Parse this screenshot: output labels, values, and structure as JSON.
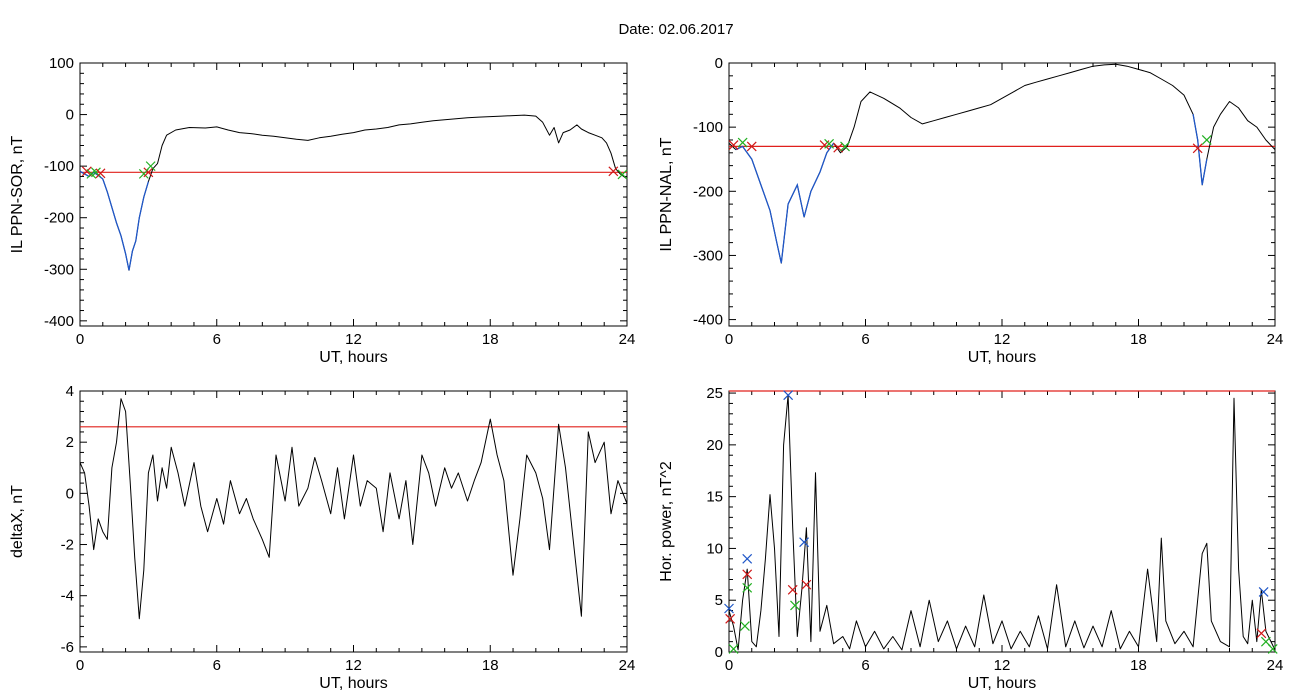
{
  "figure": {
    "title": "Date:  02.06.2017"
  },
  "colors": {
    "axis": "#000000",
    "threshold": "#e0201c",
    "trace": "#000000",
    "highlight": "#1f57c8",
    "marker_red": "#d01818",
    "marker_green": "#22b022",
    "marker_blue": "#1f57c8"
  },
  "chart_data": [
    {
      "id": "il-sor",
      "type": "line",
      "xlabel": "UT, hours",
      "ylabel": "IL PPN-SOR, nT",
      "xlim": [
        0,
        24
      ],
      "ylim": [
        -410,
        100
      ],
      "xticks": [
        0,
        6,
        12,
        18,
        24
      ],
      "yticks": [
        100,
        0,
        -100,
        -200,
        -300,
        -400
      ],
      "threshold": -112,
      "highlight_segments": [
        [
          0,
          1.0
        ],
        [
          1.0,
          3.1
        ]
      ],
      "series": [
        {
          "x": [
            0,
            0.2,
            0.4,
            0.6,
            0.8,
            1.0,
            1.2,
            1.4,
            1.6,
            1.8,
            2.0,
            2.15,
            2.3,
            2.45,
            2.6,
            2.8,
            3.0,
            3.2,
            3.4,
            3.6,
            3.8,
            4.2,
            4.8,
            5.5,
            6.0,
            6.5,
            7.0,
            7.5,
            8.0,
            8.5,
            9.0,
            9.5,
            10.0,
            10.5,
            11.0,
            11.5,
            12.0,
            12.5,
            13.0,
            13.5,
            14.0,
            14.5,
            15.0,
            15.5,
            16.0,
            16.5,
            17.0,
            17.5,
            18.0,
            18.5,
            19.0,
            19.5,
            20.0,
            20.3,
            20.6,
            20.8,
            21.0,
            21.2,
            21.5,
            21.8,
            22.0,
            22.3,
            22.6,
            22.9,
            23.1,
            23.3,
            23.5,
            23.7,
            24.0
          ],
          "y": [
            -110,
            -115,
            -120,
            -112,
            -118,
            -125,
            -150,
            -180,
            -210,
            -235,
            -270,
            -302,
            -265,
            -245,
            -200,
            -160,
            -130,
            -105,
            -95,
            -60,
            -40,
            -30,
            -25,
            -26,
            -24,
            -30,
            -35,
            -37,
            -40,
            -42,
            -45,
            -48,
            -50,
            -45,
            -42,
            -38,
            -35,
            -30,
            -28,
            -25,
            -20,
            -18,
            -15,
            -12,
            -10,
            -8,
            -6,
            -5,
            -4,
            -3,
            -2,
            -1,
            -3,
            -15,
            -40,
            -25,
            -55,
            -35,
            -30,
            -20,
            -28,
            -35,
            -40,
            -45,
            -55,
            -75,
            -105,
            -115,
            -125
          ]
        }
      ],
      "markers": [
        {
          "x": 0.3,
          "y": -110,
          "color": "red"
        },
        {
          "x": 0.5,
          "y": -115,
          "color": "green"
        },
        {
          "x": 0.7,
          "y": -112,
          "color": "green"
        },
        {
          "x": 0.9,
          "y": -114,
          "color": "red"
        },
        {
          "x": 2.8,
          "y": -115,
          "color": "green"
        },
        {
          "x": 3.0,
          "y": -112,
          "color": "red"
        },
        {
          "x": 3.1,
          "y": -100,
          "color": "green"
        },
        {
          "x": 23.4,
          "y": -110,
          "color": "red"
        },
        {
          "x": 23.8,
          "y": -116,
          "color": "green"
        }
      ]
    },
    {
      "id": "il-nal",
      "type": "line",
      "xlabel": "UT, hours",
      "ylabel": "IL PPN-NAL, nT",
      "xlim": [
        0,
        24
      ],
      "ylim": [
        -410,
        0
      ],
      "xticks": [
        0,
        6,
        12,
        18,
        24
      ],
      "yticks": [
        0,
        -100,
        -200,
        -300,
        -400
      ],
      "threshold": -130,
      "highlight_segments": [
        [
          0.2,
          4.6
        ],
        [
          20.4,
          21.0
        ]
      ],
      "series": [
        {
          "x": [
            0,
            0.3,
            0.6,
            1.0,
            1.4,
            1.8,
            2.1,
            2.3,
            2.6,
            3.0,
            3.3,
            3.6,
            4.0,
            4.3,
            4.6,
            4.9,
            5.2,
            5.5,
            5.8,
            6.2,
            6.8,
            7.5,
            8.0,
            8.5,
            9.0,
            9.5,
            10.0,
            10.5,
            11.0,
            11.5,
            12.0,
            12.5,
            13.0,
            13.5,
            14.0,
            14.5,
            15.0,
            15.5,
            16.0,
            16.5,
            17.0,
            17.5,
            18.0,
            18.5,
            19.0,
            19.5,
            20.0,
            20.4,
            20.6,
            20.8,
            21.0,
            21.3,
            21.6,
            22.0,
            22.4,
            22.8,
            23.2,
            23.6,
            24.0
          ],
          "y": [
            -125,
            -135,
            -130,
            -150,
            -190,
            -230,
            -280,
            -312,
            -220,
            -190,
            -240,
            -200,
            -170,
            -140,
            -125,
            -140,
            -130,
            -100,
            -60,
            -45,
            -55,
            -70,
            -85,
            -95,
            -90,
            -85,
            -80,
            -75,
            -70,
            -65,
            -55,
            -45,
            -35,
            -30,
            -25,
            -20,
            -15,
            -10,
            -5,
            -3,
            -2,
            -5,
            -10,
            -15,
            -25,
            -35,
            -50,
            -80,
            -120,
            -190,
            -150,
            -100,
            -80,
            -60,
            -70,
            -90,
            -100,
            -120,
            -135
          ]
        }
      ],
      "markers": [
        {
          "x": 0.2,
          "y": -128,
          "color": "red"
        },
        {
          "x": 0.6,
          "y": -124,
          "color": "green"
        },
        {
          "x": 1.0,
          "y": -130,
          "color": "red"
        },
        {
          "x": 4.2,
          "y": -128,
          "color": "red"
        },
        {
          "x": 4.4,
          "y": -126,
          "color": "green"
        },
        {
          "x": 4.8,
          "y": -132,
          "color": "red"
        },
        {
          "x": 5.1,
          "y": -130,
          "color": "green"
        },
        {
          "x": 20.6,
          "y": -133,
          "color": "red"
        },
        {
          "x": 21.0,
          "y": -120,
          "color": "green"
        }
      ]
    },
    {
      "id": "deltax",
      "type": "line",
      "xlabel": "UT, hours",
      "ylabel": "deltaX, nT",
      "xlim": [
        0,
        24
      ],
      "ylim": [
        -6.2,
        4
      ],
      "xticks": [
        0,
        6,
        12,
        18,
        24
      ],
      "yticks": [
        4,
        2,
        0,
        -2,
        -4,
        -6
      ],
      "threshold": 2.6,
      "highlight_segments": [],
      "series": [
        {
          "x": [
            0,
            0.2,
            0.4,
            0.6,
            0.8,
            1.0,
            1.2,
            1.4,
            1.6,
            1.8,
            2.0,
            2.2,
            2.4,
            2.6,
            2.8,
            3.0,
            3.2,
            3.4,
            3.6,
            3.8,
            4.0,
            4.3,
            4.6,
            5.0,
            5.3,
            5.6,
            6.0,
            6.3,
            6.6,
            7.0,
            7.3,
            7.6,
            8.0,
            8.3,
            8.6,
            9.0,
            9.3,
            9.6,
            10.0,
            10.3,
            10.6,
            11.0,
            11.3,
            11.6,
            12.0,
            12.3,
            12.6,
            13.0,
            13.3,
            13.6,
            14.0,
            14.3,
            14.6,
            15.0,
            15.3,
            15.6,
            16.0,
            16.3,
            16.6,
            17.0,
            17.3,
            17.6,
            18.0,
            18.3,
            18.6,
            19.0,
            19.3,
            19.6,
            20.0,
            20.3,
            20.6,
            21.0,
            21.3,
            21.6,
            22.0,
            22.3,
            22.6,
            23.0,
            23.3,
            23.6,
            24.0
          ],
          "y": [
            1.2,
            0.8,
            -0.5,
            -2.2,
            -1.0,
            -1.5,
            -1.8,
            1.0,
            2.0,
            3.7,
            3.2,
            0.5,
            -2.5,
            -4.9,
            -3.0,
            0.8,
            1.5,
            -0.3,
            1.0,
            0.2,
            1.8,
            0.8,
            -0.5,
            1.2,
            -0.5,
            -1.5,
            -0.2,
            -1.2,
            0.5,
            -0.8,
            -0.2,
            -1.0,
            -1.8,
            -2.5,
            1.5,
            -0.3,
            1.8,
            -0.5,
            0.2,
            1.4,
            0.5,
            -0.8,
            1.0,
            -1.0,
            1.5,
            -0.5,
            0.5,
            0.2,
            -1.5,
            0.8,
            -1.0,
            0.5,
            -2.0,
            1.5,
            0.8,
            -0.5,
            1.0,
            0.2,
            0.8,
            -0.3,
            0.5,
            1.2,
            2.9,
            1.5,
            0.5,
            -3.2,
            -1.0,
            1.5,
            0.8,
            -0.2,
            -2.2,
            2.7,
            1.0,
            -1.5,
            -4.8,
            2.4,
            1.2,
            2.0,
            -0.8,
            0.5,
            -0.4
          ]
        }
      ],
      "markers": []
    },
    {
      "id": "hor-power",
      "type": "line",
      "xlabel": "UT, hours",
      "ylabel": "Hor. power, nT^2",
      "xlim": [
        0,
        24
      ],
      "ylim": [
        0,
        25.2
      ],
      "xticks": [
        0,
        6,
        12,
        18,
        24
      ],
      "yticks": [
        25,
        20,
        15,
        10,
        5,
        0
      ],
      "threshold": 25.2,
      "highlight_segments": [],
      "series": [
        {
          "x": [
            0,
            0.2,
            0.4,
            0.6,
            0.8,
            1.0,
            1.2,
            1.4,
            1.6,
            1.8,
            2.0,
            2.2,
            2.4,
            2.6,
            2.8,
            3.0,
            3.2,
            3.4,
            3.6,
            3.8,
            4.0,
            4.3,
            4.6,
            5.0,
            5.3,
            5.6,
            6.0,
            6.4,
            6.8,
            7.2,
            7.6,
            8.0,
            8.4,
            8.8,
            9.2,
            9.6,
            10.0,
            10.4,
            10.8,
            11.2,
            11.6,
            12.0,
            12.4,
            12.8,
            13.2,
            13.6,
            14.0,
            14.4,
            14.8,
            15.2,
            15.6,
            16.0,
            16.4,
            16.8,
            17.2,
            17.6,
            18.0,
            18.4,
            18.8,
            19.0,
            19.2,
            19.6,
            20.0,
            20.4,
            20.8,
            21.0,
            21.2,
            21.6,
            22.0,
            22.2,
            22.4,
            22.6,
            22.8,
            23.0,
            23.2,
            23.4,
            23.6,
            24.0
          ],
          "y": [
            4.0,
            2.5,
            0.2,
            5.0,
            8.0,
            1.0,
            0.5,
            4.0,
            9.0,
            15.2,
            10.0,
            1.5,
            20.0,
            24.8,
            12.0,
            1.5,
            6.0,
            12.0,
            1.0,
            17.3,
            2.0,
            4.5,
            0.8,
            1.5,
            0.3,
            3.0,
            0.5,
            2.0,
            0.3,
            1.5,
            0.2,
            4.0,
            0.5,
            5.0,
            1.0,
            3.0,
            0.3,
            2.5,
            0.5,
            5.5,
            0.8,
            3.0,
            0.3,
            2.0,
            0.5,
            3.5,
            0.3,
            6.5,
            0.5,
            3.0,
            0.4,
            2.5,
            0.5,
            4.0,
            0.3,
            2.0,
            0.5,
            8.0,
            1.0,
            11.0,
            3.0,
            0.8,
            2.0,
            0.5,
            9.5,
            10.5,
            3.0,
            1.0,
            0.5,
            24.5,
            8.0,
            1.5,
            0.8,
            5.0,
            1.0,
            6.0,
            2.0,
            0.2
          ]
        }
      ],
      "markers": [
        {
          "x": 0,
          "y": 4.2,
          "color": "blue"
        },
        {
          "x": 0.05,
          "y": 3.2,
          "color": "red"
        },
        {
          "x": 0.2,
          "y": 0.3,
          "color": "green"
        },
        {
          "x": 0.7,
          "y": 2.5,
          "color": "green"
        },
        {
          "x": 0.8,
          "y": 9.0,
          "color": "blue"
        },
        {
          "x": 0.8,
          "y": 7.5,
          "color": "red"
        },
        {
          "x": 0.8,
          "y": 6.2,
          "color": "green"
        },
        {
          "x": 2.6,
          "y": 24.8,
          "color": "blue"
        },
        {
          "x": 2.8,
          "y": 6.0,
          "color": "red"
        },
        {
          "x": 2.9,
          "y": 4.5,
          "color": "green"
        },
        {
          "x": 3.3,
          "y": 10.6,
          "color": "blue"
        },
        {
          "x": 3.4,
          "y": 6.5,
          "color": "red"
        },
        {
          "x": 23.5,
          "y": 5.8,
          "color": "blue"
        },
        {
          "x": 23.4,
          "y": 1.8,
          "color": "red"
        },
        {
          "x": 23.6,
          "y": 1.0,
          "color": "green"
        },
        {
          "x": 23.9,
          "y": 0.3,
          "color": "green"
        }
      ]
    }
  ]
}
